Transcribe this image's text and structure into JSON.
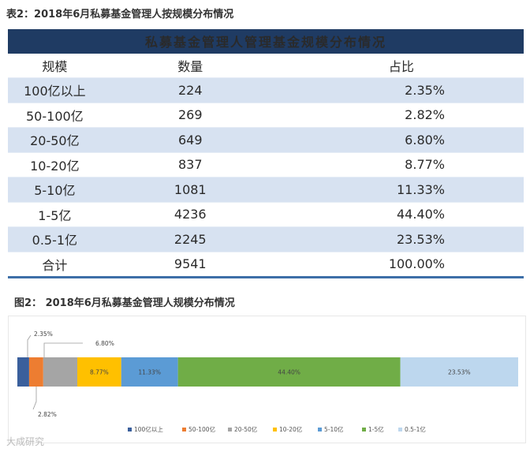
{
  "table_caption": "表2：2018年6月私募基金管理人按规模分布情况",
  "table": {
    "title": "私募基金管理人管理基金规模分布情况",
    "headers": [
      "规模",
      "数量",
      "占比"
    ],
    "rows": [
      {
        "scale": "100亿以上",
        "count": "224",
        "share": "2.35%"
      },
      {
        "scale": "50-100亿",
        "count": "269",
        "share": "2.82%"
      },
      {
        "scale": "20-50亿",
        "count": "649",
        "share": "6.80%"
      },
      {
        "scale": "10-20亿",
        "count": "837",
        "share": "8.77%"
      },
      {
        "scale": "5-10亿",
        "count": "1081",
        "share": "11.33%"
      },
      {
        "scale": "1-5亿",
        "count": "4236",
        "share": "44.40%"
      },
      {
        "scale": "0.5-1亿",
        "count": "2245",
        "share": "23.53%"
      }
    ],
    "total": {
      "scale": "合计",
      "count": "9541",
      "share": "100.00%"
    }
  },
  "chart_caption": "图2： 2018年6月私募基金管理人规模分布情况",
  "chart_data": {
    "type": "bar",
    "orientation": "horizontal-stacked-100",
    "title": "",
    "xlabel": "",
    "ylabel": "",
    "xlim": [
      0,
      100
    ],
    "legend_position": "bottom",
    "series": [
      {
        "name": "100亿以上",
        "value": 2.35,
        "label": "2.35%",
        "color": "#3a5f9c"
      },
      {
        "name": "50-100亿",
        "value": 2.82,
        "label": "2.82%",
        "color": "#ed7d31"
      },
      {
        "name": "20-50亿",
        "value": 6.8,
        "label": "6.80%",
        "color": "#a5a5a5"
      },
      {
        "name": "10-20亿",
        "value": 8.77,
        "label": "8.77%",
        "color": "#ffc000"
      },
      {
        "name": "5-10亿",
        "value": 11.33,
        "label": "11.33%",
        "color": "#5b9bd5"
      },
      {
        "name": "1-5亿",
        "value": 44.4,
        "label": "44.40%",
        "color": "#70ad47"
      },
      {
        "name": "0.5-1亿",
        "value": 23.53,
        "label": "23.53%",
        "color": "#bdd7ee"
      }
    ]
  },
  "watermark": "大成研究"
}
